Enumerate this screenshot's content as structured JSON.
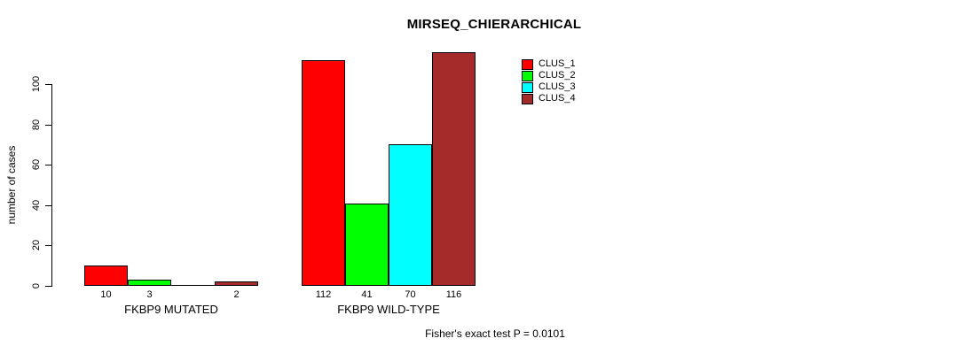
{
  "chart_data": {
    "type": "bar",
    "title": "MIRSEQ_CHIERARCHICAL",
    "ylabel": "number of cases",
    "xlabel": "",
    "footer": "Fisher's exact test P = 0.0101",
    "y_ticks": [
      0,
      20,
      40,
      60,
      80,
      100
    ],
    "ylim": [
      0,
      120
    ],
    "grid": false,
    "legend_position": "inside-top-right",
    "legend": [
      {
        "name": "CLUS_1",
        "color": "#FF0000"
      },
      {
        "name": "CLUS_2",
        "color": "#00FF00"
      },
      {
        "name": "CLUS_3",
        "color": "#00FFFF"
      },
      {
        "name": "CLUS_4",
        "color": "#A52A2A"
      }
    ],
    "categories": [
      "FKBP9 MUTATED",
      "FKBP9 WILD-TYPE"
    ],
    "groups": [
      {
        "label": "FKBP9 MUTATED",
        "values": [
          10,
          3,
          0,
          2
        ],
        "value_labels": [
          "10",
          "3",
          "",
          "2"
        ]
      },
      {
        "label": "FKBP9 WILD-TYPE",
        "values": [
          112,
          41,
          70,
          116
        ],
        "value_labels": [
          "112",
          "41",
          "70",
          "116"
        ]
      }
    ]
  }
}
